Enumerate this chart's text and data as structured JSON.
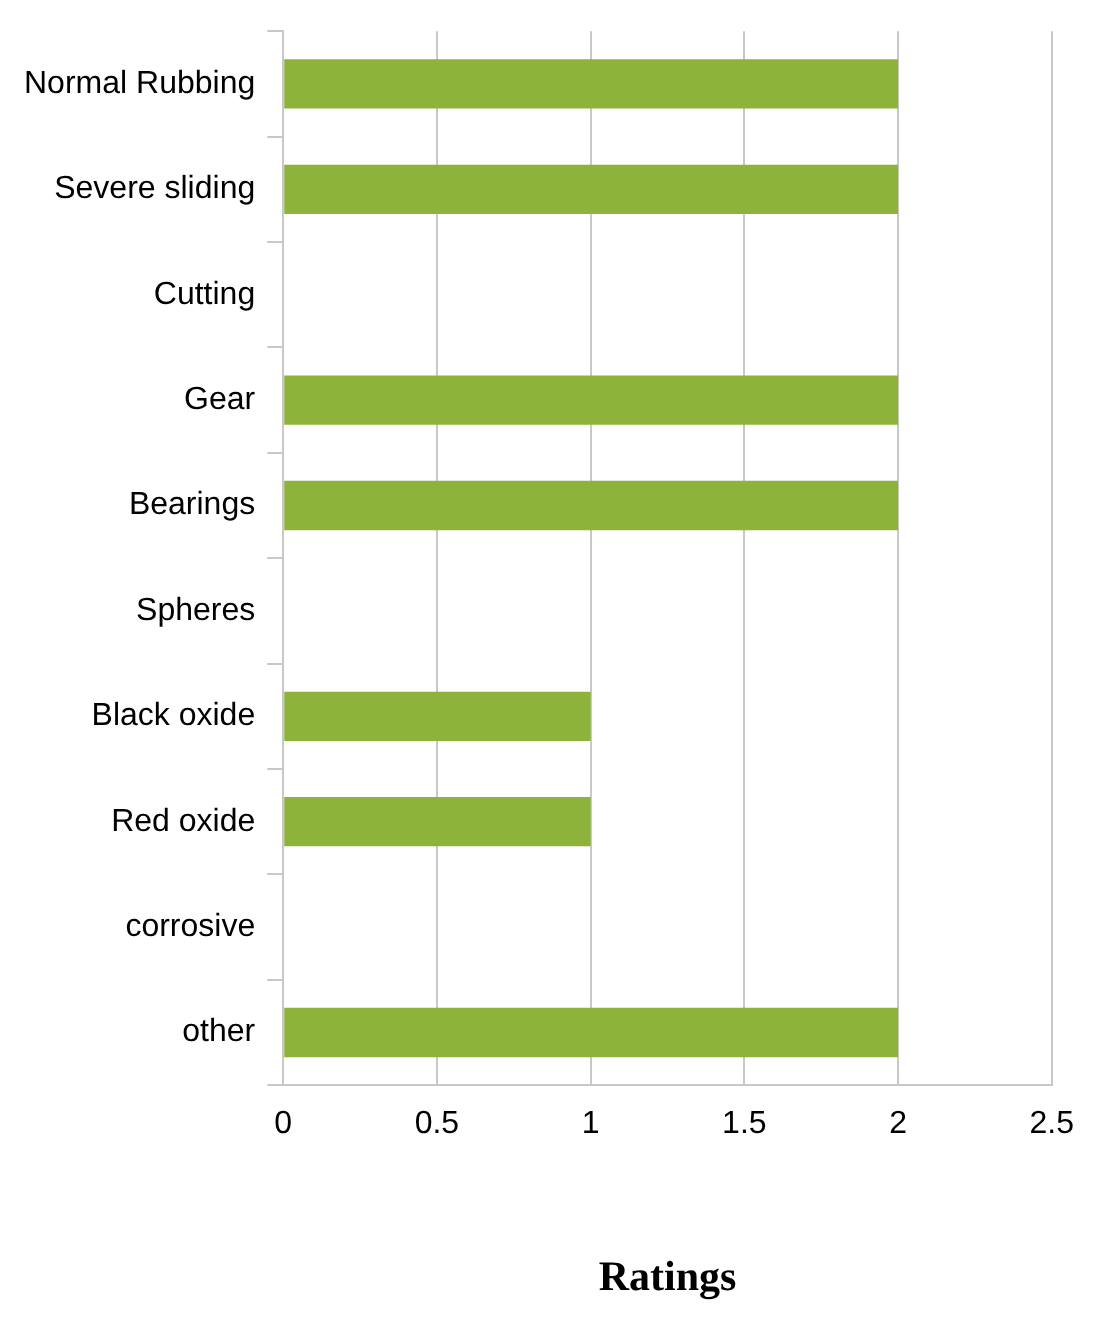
{
  "chart_data": {
    "type": "bar",
    "orientation": "horizontal",
    "xlabel": "Ratings",
    "categories": [
      "Normal Rubbing",
      "Severe sliding",
      "Cutting",
      "Gear",
      "Bearings",
      "Spheres",
      "Black oxide",
      "Red oxide",
      "corrosive",
      "other"
    ],
    "values": [
      2,
      2,
      0,
      2,
      2,
      0,
      1,
      1,
      0,
      2
    ],
    "color": "#8db33a",
    "xlim": [
      0,
      2.5
    ],
    "xticks": [
      0,
      0.5,
      1,
      1.5,
      2,
      2.5
    ],
    "grid": "x",
    "legend": false
  }
}
